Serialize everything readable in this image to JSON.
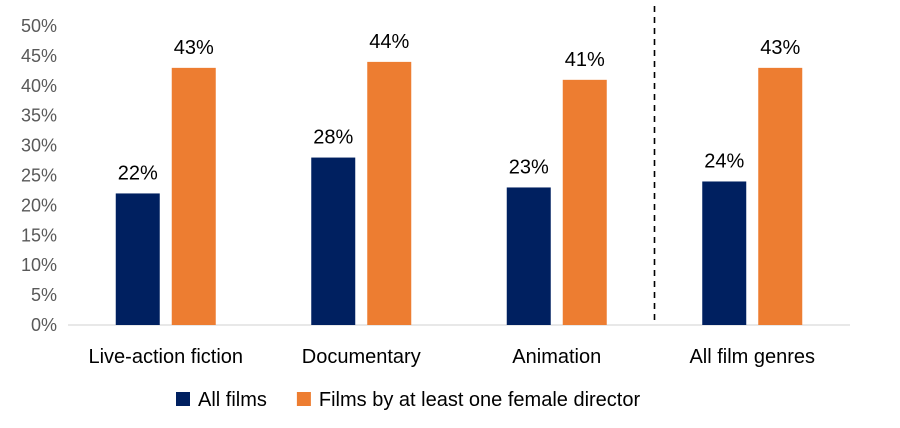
{
  "chart_data": {
    "type": "bar",
    "categories": [
      "Live-action fiction",
      "Documentary",
      "Animation",
      "All film genres"
    ],
    "series": [
      {
        "name": "All films",
        "values": [
          22,
          28,
          23,
          24
        ],
        "color": "#002060"
      },
      {
        "name": "Films by at least one female director",
        "values": [
          43,
          44,
          41,
          43
        ],
        "color": "#ED7D31"
      }
    ],
    "data_labels": [
      [
        "22%",
        "28%",
        "23%",
        "24%"
      ],
      [
        "43%",
        "44%",
        "41%",
        "43%"
      ]
    ],
    "y_ticks": [
      "0%",
      "5%",
      "10%",
      "15%",
      "20%",
      "25%",
      "30%",
      "35%",
      "40%",
      "45%",
      "50%"
    ],
    "ylim": [
      0,
      50
    ],
    "y_unit": "%",
    "grid": false,
    "separator_before_category": 3,
    "legend_position": "bottom"
  }
}
